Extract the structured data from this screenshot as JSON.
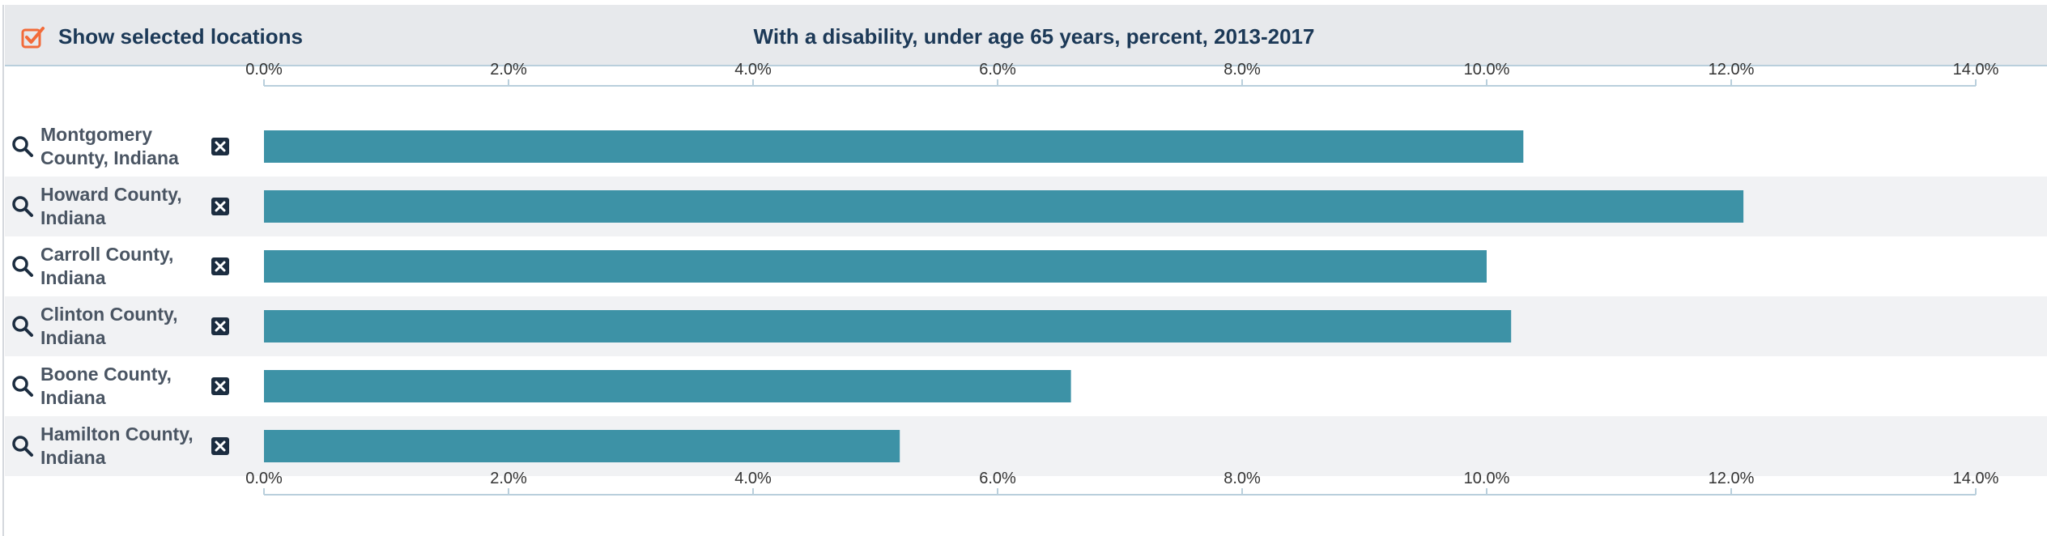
{
  "header": {
    "toggle_label": "Show selected locations",
    "toggle_checked": true,
    "toggle_icon": "checkbox-checked-icon",
    "accent_color": "#f26b3a"
  },
  "row_icons": {
    "search": "search-icon",
    "remove": "close-icon"
  },
  "colors": {
    "bar": "#3d92a6",
    "title": "#1c3957",
    "label": "#4a5563",
    "row_alt": "#f1f2f4"
  },
  "chart_data": {
    "type": "bar",
    "orientation": "horizontal",
    "title": "With a disability, under age 65 years, percent, 2013-2017",
    "categories": [
      "Montgomery County, Indiana",
      "Howard County, Indiana",
      "Carroll County, Indiana",
      "Clinton County, Indiana",
      "Boone County, Indiana",
      "Hamilton County, Indiana"
    ],
    "category_lines": [
      [
        "Montgomery",
        "County, Indiana"
      ],
      [
        "Howard County,",
        "Indiana"
      ],
      [
        "Carroll County,",
        "Indiana"
      ],
      [
        "Clinton County,",
        "Indiana"
      ],
      [
        "Boone County,",
        "Indiana"
      ],
      [
        "Hamilton County,",
        "Indiana"
      ]
    ],
    "values": [
      10.3,
      12.1,
      10.0,
      10.2,
      6.6,
      5.2
    ],
    "xlim": [
      0,
      14
    ],
    "ticks": [
      "0.0%",
      "2.0%",
      "4.0%",
      "6.0%",
      "8.0%",
      "10.0%",
      "12.0%",
      "14.0%"
    ],
    "tick_values": [
      0,
      2,
      4,
      6,
      8,
      10,
      12,
      14
    ],
    "axis_position": "top and bottom",
    "grid": false,
    "legend": "none"
  }
}
